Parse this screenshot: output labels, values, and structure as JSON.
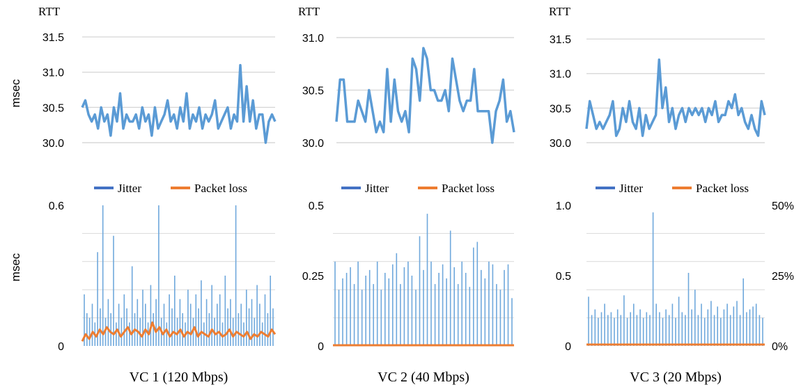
{
  "y_unit_label": "msec",
  "colors": {
    "rtt": "#5b9bd5",
    "jitter": "#4472c4",
    "jitter_bar": "#6fa8dc",
    "packet_loss": "#ed7d31",
    "grid": "#d9d9d9"
  },
  "chart_data": [
    {
      "type": "line",
      "panel": "VC 1 RTT",
      "title": "RTT",
      "ylabel": "msec",
      "ylim": [
        29.9,
        31.6
      ],
      "yticks": [
        "31.5",
        "31.0",
        "30.5",
        "30.0"
      ],
      "ytick_values": [
        31.5,
        31.0,
        30.5,
        30.0
      ],
      "grid": true,
      "series": [
        {
          "values": [
            30.5,
            30.6,
            30.4,
            30.3,
            30.4,
            30.2,
            30.5,
            30.3,
            30.4,
            30.1,
            30.5,
            30.3,
            30.7,
            30.2,
            30.4,
            30.3,
            30.3,
            30.4,
            30.2,
            30.5,
            30.3,
            30.4,
            30.1,
            30.5,
            30.2,
            30.3,
            30.4,
            30.6,
            30.3,
            30.4,
            30.2,
            30.5,
            30.3,
            30.7,
            30.2,
            30.4,
            30.3,
            30.5,
            30.2,
            30.4,
            30.3,
            30.4,
            30.6,
            30.2,
            30.3,
            30.4,
            30.5,
            30.2,
            30.4,
            30.3,
            31.1,
            30.3,
            30.8,
            30.3,
            30.6,
            30.2,
            30.4,
            30.4,
            30.0,
            30.3,
            30.4,
            30.3
          ]
        }
      ]
    },
    {
      "type": "line",
      "panel": "VC 2 RTT",
      "title": "RTT",
      "ylim": [
        29.9,
        31.1
      ],
      "yticks": [
        "31.0",
        "30.5",
        "30.0"
      ],
      "ytick_values": [
        31.0,
        30.5,
        30.0
      ],
      "grid": true,
      "series": [
        {
          "values": [
            30.2,
            30.6,
            30.6,
            30.2,
            30.2,
            30.2,
            30.4,
            30.3,
            30.2,
            30.5,
            30.3,
            30.1,
            30.2,
            30.1,
            30.7,
            30.2,
            30.6,
            30.3,
            30.2,
            30.3,
            30.1,
            30.8,
            30.7,
            30.4,
            30.9,
            30.8,
            30.5,
            30.5,
            30.4,
            30.4,
            30.5,
            30.3,
            30.8,
            30.6,
            30.4,
            30.3,
            30.4,
            30.4,
            30.7,
            30.3,
            30.3,
            30.3,
            30.3,
            30.0,
            30.3,
            30.4,
            30.6,
            30.2,
            30.3,
            30.1
          ]
        }
      ]
    },
    {
      "type": "line",
      "panel": "VC 3 RTT",
      "title": "RTT",
      "ylim": [
        29.9,
        31.6
      ],
      "yticks": [
        "31.5",
        "31.0",
        "30.5",
        "30.0"
      ],
      "ytick_values": [
        31.5,
        31.0,
        30.5,
        30.0
      ],
      "grid": true,
      "series": [
        {
          "values": [
            30.2,
            30.6,
            30.4,
            30.2,
            30.3,
            30.2,
            30.3,
            30.4,
            30.6,
            30.1,
            30.2,
            30.5,
            30.3,
            30.6,
            30.3,
            30.2,
            30.5,
            30.1,
            30.4,
            30.2,
            30.3,
            30.4,
            31.2,
            30.5,
            30.8,
            30.3,
            30.5,
            30.2,
            30.4,
            30.5,
            30.3,
            30.5,
            30.4,
            30.5,
            30.4,
            30.5,
            30.3,
            30.5,
            30.4,
            30.6,
            30.3,
            30.4,
            30.4,
            30.6,
            30.5,
            30.7,
            30.4,
            30.5,
            30.3,
            30.2,
            30.4,
            30.2,
            30.1,
            30.6,
            30.4
          ]
        }
      ]
    },
    {
      "type": "bar",
      "panel": "VC 1 Jitter / Packet loss",
      "xlabel": "VC 1  (120 Mbps)",
      "ylabel": "msec",
      "ylim": [
        0,
        0.6
      ],
      "yticks": [
        "0.6",
        "0"
      ],
      "ytick_values": [
        0.6,
        0
      ],
      "grid": true,
      "legend": [
        "Jitter",
        "Packet loss"
      ],
      "legend_position": "top",
      "series": [
        {
          "name": "Jitter",
          "values": [
            0.22,
            0.14,
            0.12,
            0.18,
            0.1,
            0.4,
            0.16,
            0.6,
            0.12,
            0.2,
            0.14,
            0.47,
            0.1,
            0.18,
            0.12,
            0.22,
            0.16,
            0.1,
            0.34,
            0.14,
            0.2,
            0.12,
            0.24,
            0.18,
            0.1,
            0.26,
            0.14,
            0.2,
            0.6,
            0.12,
            0.18,
            0.1,
            0.22,
            0.16,
            0.3,
            0.12,
            0.2,
            0.14,
            0.1,
            0.24,
            0.18,
            0.12,
            0.22,
            0.16,
            0.28,
            0.1,
            0.2,
            0.14,
            0.26,
            0.12,
            0.18,
            0.22,
            0.1,
            0.3,
            0.16,
            0.2,
            0.12,
            0.6,
            0.14,
            0.18,
            0.1,
            0.24,
            0.16,
            0.2,
            0.12,
            0.26,
            0.18,
            0.1,
            0.22,
            0.14,
            0.3,
            0.16
          ]
        },
        {
          "name": "Packet loss",
          "values": [
            0.02,
            0.05,
            0.03,
            0.06,
            0.04,
            0.07,
            0.05,
            0.08,
            0.06,
            0.05,
            0.07,
            0.04,
            0.06,
            0.08,
            0.05,
            0.07,
            0.06,
            0.04,
            0.07,
            0.05,
            0.1,
            0.06,
            0.08,
            0.05,
            0.07,
            0.04,
            0.06,
            0.05,
            0.07,
            0.04,
            0.06,
            0.05,
            0.08,
            0.04,
            0.06,
            0.05,
            0.04,
            0.07,
            0.05,
            0.06,
            0.04,
            0.05,
            0.07,
            0.04,
            0.06,
            0.05,
            0.04,
            0.06,
            0.03,
            0.05,
            0.04,
            0.06,
            0.05,
            0.04,
            0.07,
            0.05
          ]
        }
      ]
    },
    {
      "type": "bar",
      "panel": "VC 2 Jitter / Packet loss",
      "xlabel": "VC 2  (40 Mbps)",
      "ylim": [
        0,
        0.5
      ],
      "yticks": [
        "0.5",
        "0.25",
        "0"
      ],
      "ytick_values": [
        0.5,
        0.25,
        0
      ],
      "grid": true,
      "legend": [
        "Jitter",
        "Packet loss"
      ],
      "legend_position": "top",
      "series": [
        {
          "name": "Jitter",
          "values": [
            0.3,
            0.2,
            0.24,
            0.26,
            0.28,
            0.22,
            0.3,
            0.2,
            0.25,
            0.27,
            0.22,
            0.3,
            0.2,
            0.26,
            0.24,
            0.29,
            0.33,
            0.22,
            0.28,
            0.3,
            0.25,
            0.2,
            0.39,
            0.27,
            0.47,
            0.3,
            0.22,
            0.26,
            0.29,
            0.24,
            0.41,
            0.28,
            0.22,
            0.3,
            0.26,
            0.21,
            0.35,
            0.37,
            0.27,
            0.24,
            0.3,
            0.29,
            0.22,
            0.2,
            0.27,
            0.29,
            0.17
          ]
        },
        {
          "name": "Packet loss",
          "values": [
            0,
            0,
            0,
            0,
            0,
            0,
            0,
            0,
            0,
            0
          ]
        }
      ]
    },
    {
      "type": "bar",
      "panel": "VC 3 Jitter / Packet loss",
      "xlabel": "VC 3  (20 Mbps)",
      "ylim": [
        0,
        1.0
      ],
      "yticks": [
        "1.0",
        "0.5",
        "0"
      ],
      "ytick_values": [
        1.0,
        0.5,
        0
      ],
      "y2ticks": [
        "50%",
        "25%",
        "0%"
      ],
      "y2tick_values": [
        50,
        25,
        0
      ],
      "grid": true,
      "legend": [
        "Jitter",
        "Packet loss"
      ],
      "legend_position": "top",
      "series": [
        {
          "name": "Jitter",
          "values": [
            0.35,
            0.22,
            0.26,
            0.2,
            0.24,
            0.3,
            0.22,
            0.24,
            0.2,
            0.26,
            0.22,
            0.36,
            0.2,
            0.24,
            0.3,
            0.22,
            0.26,
            0.2,
            0.24,
            0.22,
            0.95,
            0.3,
            0.24,
            0.2,
            0.26,
            0.22,
            0.3,
            0.2,
            0.35,
            0.24,
            0.22,
            0.52,
            0.26,
            0.4,
            0.22,
            0.3,
            0.2,
            0.26,
            0.32,
            0.22,
            0.28,
            0.2,
            0.26,
            0.3,
            0.22,
            0.28,
            0.32,
            0.22,
            0.48,
            0.24,
            0.26,
            0.28,
            0.3,
            0.22,
            0.2
          ]
        },
        {
          "name": "Packet loss",
          "values": [
            0.01,
            0.01,
            0.01,
            0.01,
            0.01,
            0.01,
            0.01,
            0.01,
            0.01,
            0.01
          ]
        }
      ]
    }
  ]
}
